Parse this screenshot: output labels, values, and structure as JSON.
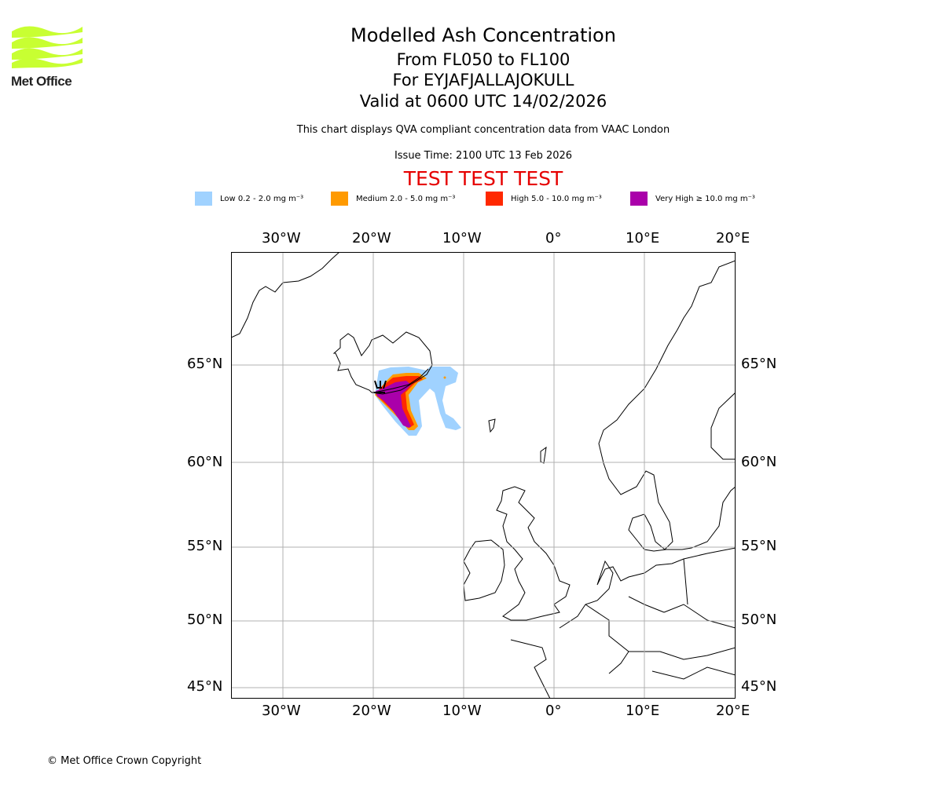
{
  "logo": {
    "text": "Met Office",
    "color": "#c8ff32"
  },
  "title": {
    "line1": "Modelled Ash Concentration",
    "line2": "From FL050 to FL100",
    "line3": "For EYJAFJALLAJOKULL",
    "line4": "Valid at 0600 UTC 14/02/2026"
  },
  "subtitle": "This chart displays QVA compliant concentration data from VAAC London",
  "issue_time": "Issue Time: 2100 UTC 13 Feb 2026",
  "test_banner": "TEST TEST TEST",
  "legend": [
    {
      "label": "Low 0.2 - 2.0 mg m⁻³",
      "color": "#a0d2ff"
    },
    {
      "label": "Medium 2.0 - 5.0 mg m⁻³",
      "color": "#ff9a00"
    },
    {
      "label": "High 5.0 - 10.0 mg m⁻³",
      "color": "#ff2800"
    },
    {
      "label": "Very High ≥ 10.0 mg m⁻³",
      "color": "#aa00aa"
    }
  ],
  "lon_ticks": [
    "30°W",
    "20°W",
    "10°W",
    "0°",
    "10°E",
    "20°E"
  ],
  "lat_ticks": [
    "65°N",
    "60°N",
    "55°N",
    "50°N",
    "45°N"
  ],
  "copyright": "© Met Office Crown Copyright"
}
